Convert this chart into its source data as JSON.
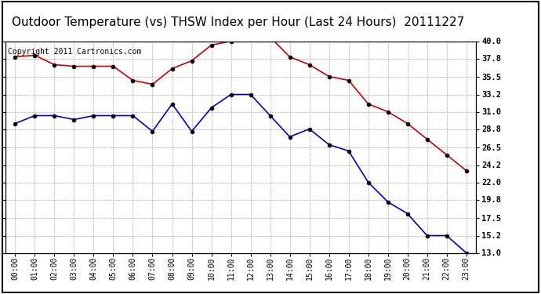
{
  "title": "Outdoor Temperature (vs) THSW Index per Hour (Last 24 Hours)  20111227",
  "copyright": "Copyright 2011 Cartronics.com",
  "hours": [
    "00:00",
    "01:00",
    "02:00",
    "03:00",
    "04:00",
    "05:00",
    "06:00",
    "07:00",
    "08:00",
    "09:00",
    "10:00",
    "11:00",
    "12:00",
    "13:00",
    "14:00",
    "15:00",
    "16:00",
    "17:00",
    "18:00",
    "19:00",
    "20:00",
    "21:00",
    "22:00",
    "23:00"
  ],
  "red_data": [
    38.0,
    38.2,
    37.0,
    36.8,
    36.8,
    36.8,
    35.0,
    34.5,
    36.5,
    37.5,
    39.5,
    40.0,
    41.0,
    40.5,
    38.0,
    37.0,
    35.5,
    35.0,
    32.0,
    31.0,
    29.5,
    27.5,
    25.5,
    23.5
  ],
  "blue_data": [
    29.5,
    30.5,
    30.5,
    30.0,
    30.5,
    30.5,
    30.5,
    28.5,
    32.0,
    28.5,
    31.5,
    33.2,
    33.2,
    30.5,
    27.8,
    28.8,
    26.8,
    26.0,
    22.0,
    19.5,
    18.0,
    15.2,
    15.2,
    13.0
  ],
  "red_color": "#cc0000",
  "blue_color": "#0000cc",
  "marker": "o",
  "marker_size": 3.5,
  "marker_color": "#000000",
  "ymin": 13.0,
  "ymax": 40.0,
  "yticks_right": [
    40.0,
    37.8,
    35.5,
    33.2,
    31.0,
    28.8,
    26.5,
    24.2,
    22.0,
    19.8,
    17.5,
    15.2,
    13.0
  ],
  "grid_color": "#aaaaaa",
  "grid_style": "--",
  "background_color": "#ffffff",
  "title_fontsize": 11,
  "copyright_fontsize": 7
}
